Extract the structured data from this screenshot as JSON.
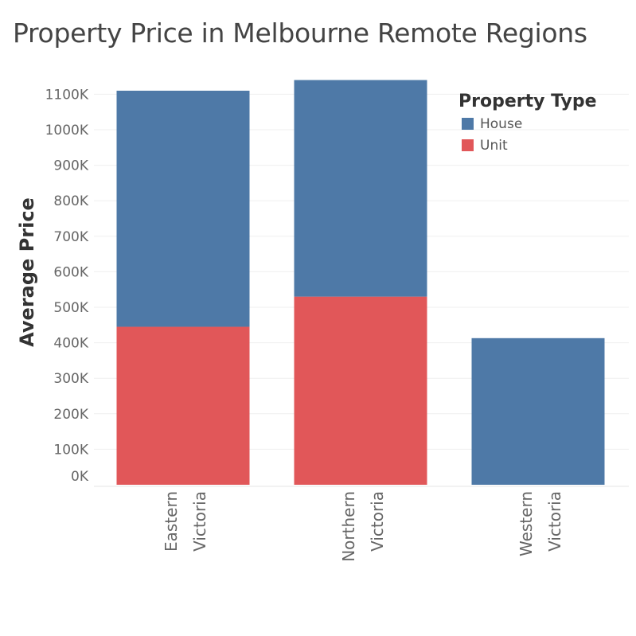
{
  "chart_data": {
    "type": "bar",
    "stacked": true,
    "title": "Property Price in Melbourne Remote Regions",
    "xlabel": "",
    "ylabel": "Average Price",
    "categories": [
      "Eastern Victoria",
      "Northern Victoria",
      "Western Victoria"
    ],
    "category_lines": [
      [
        "Eastern",
        "Victoria"
      ],
      [
        "Northern",
        "Victoria"
      ],
      [
        "Western",
        "Victoria"
      ]
    ],
    "legend_title": "Property Type",
    "legend_position": "top-right",
    "grid": true,
    "ylim": [
      0,
      1150000
    ],
    "yticks": [
      0,
      100000,
      200000,
      300000,
      400000,
      500000,
      600000,
      700000,
      800000,
      900000,
      1000000,
      1100000
    ],
    "ytick_labels": [
      "0K",
      "100K",
      "200K",
      "300K",
      "400K",
      "500K",
      "600K",
      "700K",
      "800K",
      "900K",
      "1000K",
      "1100K"
    ],
    "series": [
      {
        "name": "House",
        "color": "#4e79a7",
        "values": [
          665000,
          610000,
          413000
        ]
      },
      {
        "name": "Unit",
        "color": "#e15759",
        "values": [
          445000,
          530000,
          0
        ]
      }
    ],
    "stack_order_bottom_to_top": [
      "Unit",
      "House"
    ]
  }
}
